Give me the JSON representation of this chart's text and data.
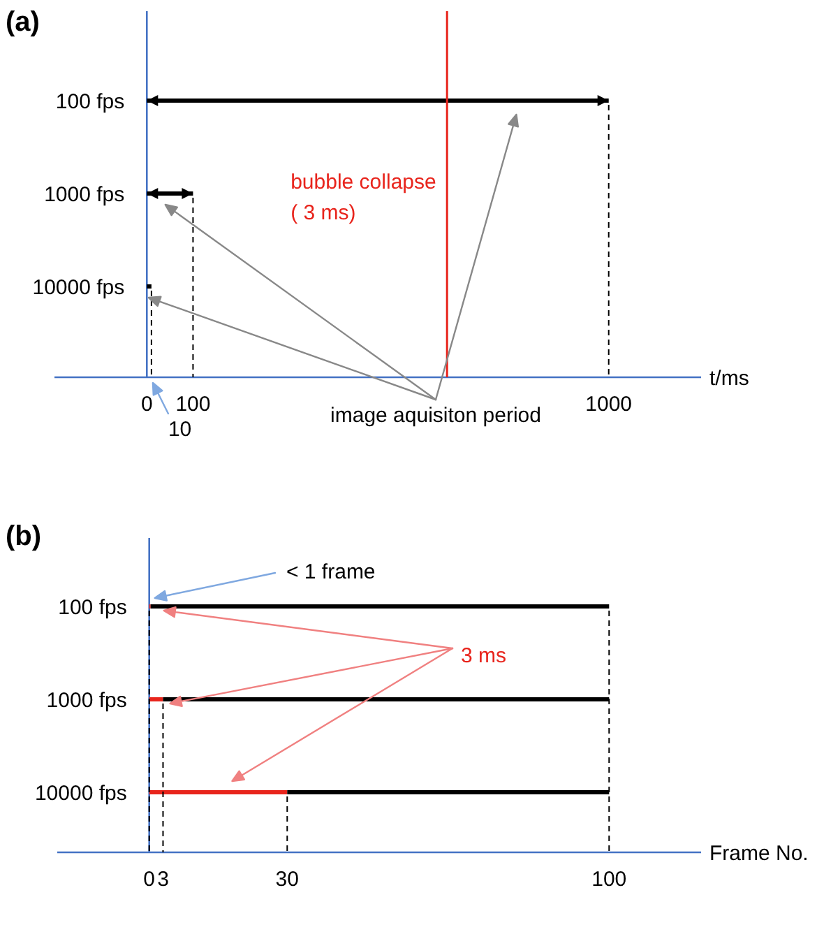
{
  "chart_data": [
    {
      "type": "bar",
      "orientation": "horizontal",
      "title": "(a)",
      "xlabel": "t/ms",
      "categories": [
        "100 fps",
        "1000 fps",
        "10000 fps"
      ],
      "series": [
        {
          "color": "#000000",
          "values": [
            1000,
            100,
            10
          ]
        }
      ],
      "xlim": [
        -200,
        1200
      ],
      "xticks": [
        0,
        100,
        1000
      ],
      "ref_lines": [
        {
          "axis": "x",
          "value": 650,
          "label": "bubble collapse\n( 3 ms)",
          "color": "#e8241c"
        },
        {
          "axis": "x",
          "value": 10,
          "color": "#000000",
          "line_style": "dashed"
        },
        {
          "axis": "x",
          "value": 100,
          "color": "#000000",
          "line_style": "dashed"
        },
        {
          "axis": "x",
          "value": 1000,
          "color": "#000000",
          "line_style": "dashed"
        }
      ],
      "annotations": [
        "image aquisiton period",
        "10"
      ]
    },
    {
      "type": "bar",
      "orientation": "horizontal",
      "stacked": true,
      "title": "(b)",
      "xlabel": "Frame No.",
      "categories": [
        "100 fps",
        "1000 fps",
        "10000 fps"
      ],
      "series": [
        {
          "color": "#e8241c",
          "values": [
            0.3,
            3,
            30
          ]
        },
        {
          "color": "#000000",
          "values": [
            99.7,
            97,
            70
          ]
        }
      ],
      "xlim": [
        -20,
        120
      ],
      "xticks": [
        0,
        3,
        30,
        100
      ],
      "ref_lines": [
        {
          "axis": "x",
          "value": 0,
          "color": "#000000",
          "line_style": "dashed"
        },
        {
          "axis": "x",
          "value": 3,
          "color": "#000000",
          "line_style": "dashed"
        },
        {
          "axis": "x",
          "value": 30,
          "color": "#000000",
          "line_style": "dashed"
        },
        {
          "axis": "x",
          "value": 100,
          "color": "#000000",
          "line_style": "dashed"
        }
      ],
      "annotations": [
        "< 1 frame",
        "3 ms"
      ]
    }
  ]
}
